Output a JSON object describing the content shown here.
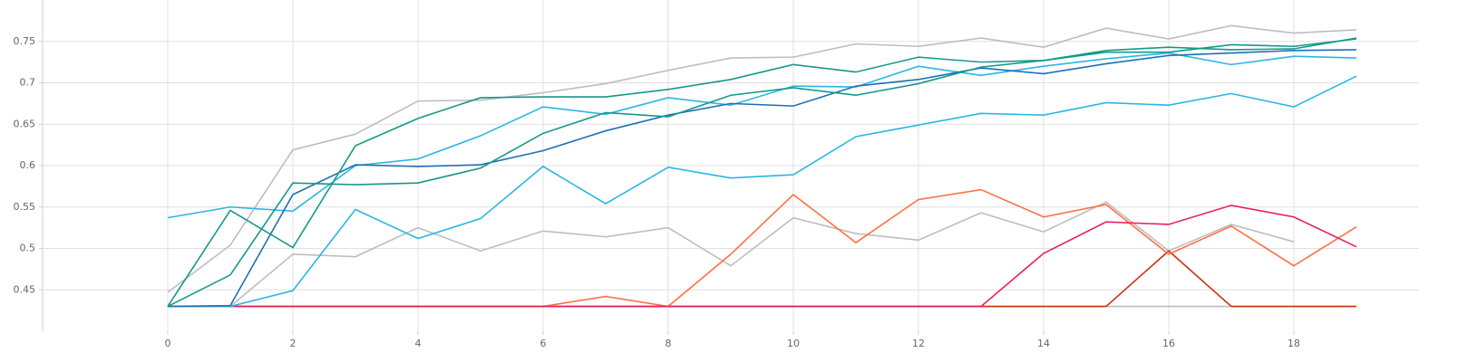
{
  "chart_data": {
    "type": "line",
    "x": [
      0,
      1,
      2,
      3,
      4,
      5,
      6,
      7,
      8,
      9,
      10,
      11,
      12,
      13,
      14,
      15,
      16,
      17,
      18,
      19
    ],
    "series": [
      {
        "color": "#bdbdbd",
        "values": [
          0.447,
          0.504,
          0.619,
          0.638,
          0.678,
          0.679,
          0.688,
          0.699,
          0.715,
          0.73,
          0.731,
          0.747,
          0.744,
          0.754,
          0.743,
          0.766,
          0.753,
          0.769,
          0.76,
          0.764
        ]
      },
      {
        "color": "#bdbdbd",
        "values": [
          null,
          0.43,
          0.493,
          0.49,
          0.525,
          0.497,
          0.521,
          0.514,
          0.525,
          0.479,
          0.537,
          0.518,
          0.51,
          0.543,
          0.52,
          0.556,
          0.497,
          0.529,
          0.508,
          null
        ]
      },
      {
        "color": "#bdbdbd",
        "values": [
          0.43,
          0.43,
          0.43,
          0.43,
          0.43,
          0.43,
          0.43,
          0.43,
          0.43,
          0.43,
          0.43,
          0.43,
          0.43,
          0.43,
          0.43,
          0.43,
          0.43,
          0.43,
          0.43,
          0.43
        ]
      },
      {
        "color": "#cc3311",
        "values": [
          0.43,
          0.43,
          0.43,
          0.43,
          0.43,
          0.43,
          0.43,
          0.43,
          0.43,
          0.43,
          0.43,
          0.43,
          0.43,
          0.43,
          0.43,
          0.43,
          0.497,
          0.43,
          0.43,
          0.43
        ]
      },
      {
        "color": "#ff7043",
        "values": [
          0.43,
          0.43,
          0.43,
          0.43,
          0.43,
          0.43,
          0.43,
          0.442,
          0.43,
          0.493,
          0.565,
          0.507,
          0.559,
          0.571,
          0.538,
          0.553,
          0.493,
          0.527,
          0.479,
          0.526
        ]
      },
      {
        "color": "#e91e63",
        "values": [
          0.43,
          0.43,
          0.43,
          0.43,
          0.43,
          0.43,
          0.43,
          0.43,
          0.43,
          0.43,
          0.43,
          0.43,
          0.43,
          0.43,
          0.494,
          0.532,
          0.529,
          0.552,
          0.538,
          0.502
        ]
      },
      {
        "color": "#29b6e6",
        "values": [
          0.43,
          0.43,
          0.449,
          0.547,
          0.512,
          0.536,
          0.599,
          0.554,
          0.598,
          0.585,
          0.589,
          0.635,
          0.649,
          0.663,
          0.661,
          0.676,
          0.673,
          0.687,
          0.671,
          0.708
        ]
      },
      {
        "color": "#29b6e6",
        "values": [
          0.537,
          0.55,
          0.545,
          0.6,
          0.608,
          0.636,
          0.671,
          0.662,
          0.682,
          0.673,
          0.696,
          0.695,
          0.72,
          0.709,
          0.72,
          0.729,
          0.736,
          0.722,
          0.732,
          0.73
        ]
      },
      {
        "color": "#1f6fb5",
        "values": [
          0.43,
          0.431,
          0.565,
          0.601,
          0.599,
          0.601,
          0.618,
          0.642,
          0.661,
          0.675,
          0.672,
          0.696,
          0.704,
          0.718,
          0.711,
          0.723,
          0.733,
          0.736,
          0.739,
          0.74
        ]
      },
      {
        "color": "#139a88",
        "values": [
          0.43,
          0.468,
          0.579,
          0.577,
          0.579,
          0.597,
          0.639,
          0.664,
          0.659,
          0.685,
          0.694,
          0.685,
          0.699,
          0.719,
          0.727,
          0.739,
          0.743,
          0.74,
          0.741,
          0.754
        ]
      },
      {
        "color": "#139a88",
        "values": [
          0.43,
          0.546,
          0.501,
          0.624,
          0.657,
          0.682,
          0.683,
          0.683,
          0.692,
          0.704,
          0.722,
          0.713,
          0.731,
          0.725,
          0.727,
          0.737,
          0.737,
          0.746,
          0.744,
          0.753
        ]
      }
    ],
    "xlim": [
      -2,
      20
    ],
    "xticks": [
      0,
      2,
      4,
      6,
      8,
      10,
      12,
      14,
      16,
      18
    ],
    "ylim": [
      0.4,
      0.8
    ],
    "yticks": [
      0.45,
      0.5,
      0.55,
      0.6,
      0.65,
      0.7,
      0.75
    ],
    "grid": true
  }
}
